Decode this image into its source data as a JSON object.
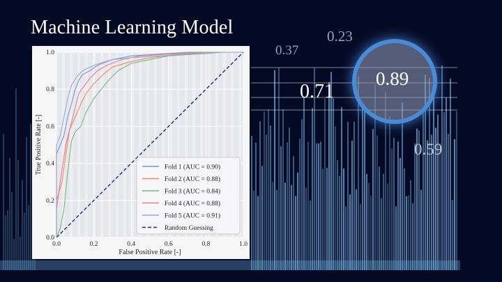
{
  "slide": {
    "title": "Machine Learning Model",
    "floating_numbers": [
      "0.23",
      "0.37",
      "0.71",
      "0.89",
      "0.59"
    ],
    "highlighted_number": "0.89",
    "highlight_color": "#4a8bd6",
    "background_color": "#050a24",
    "bar_color": "#6aa8d8"
  },
  "chart_data": {
    "type": "line",
    "xlabel": "False Positive Rate [-]",
    "ylabel": "True Positive Rate [-]",
    "xlim": [
      0,
      1
    ],
    "ylim": [
      0,
      1
    ],
    "xticks": [
      "0.0",
      "0.2",
      "0.4",
      "0.6",
      "0.8",
      "1.0"
    ],
    "yticks": [
      "0.0",
      "0.2",
      "0.4",
      "0.6",
      "0.8",
      "1.0"
    ],
    "grid": true,
    "legend_position": "lower-right",
    "series": [
      {
        "name": "Fold 1 (AUC = 0.90)",
        "color": "#6b9bd1",
        "x": [
          0,
          0,
          0.02,
          0.04,
          0.06,
          0.08,
          0.1,
          0.12,
          0.14,
          0.18,
          0.22,
          0.3,
          0.4,
          0.55,
          0.7,
          0.85,
          1
        ],
        "y": [
          0,
          0.45,
          0.5,
          0.55,
          0.65,
          0.72,
          0.8,
          0.85,
          0.88,
          0.9,
          0.93,
          0.96,
          0.98,
          0.99,
          1,
          1,
          1
        ]
      },
      {
        "name": "Fold 2 (AUC = 0.88)",
        "color": "#f08a5d",
        "x": [
          0,
          0,
          0.03,
          0.05,
          0.07,
          0.1,
          0.13,
          0.16,
          0.2,
          0.25,
          0.3,
          0.4,
          0.5,
          0.65,
          0.8,
          1
        ],
        "y": [
          0,
          0.2,
          0.3,
          0.45,
          0.58,
          0.65,
          0.72,
          0.78,
          0.83,
          0.88,
          0.92,
          0.95,
          0.97,
          0.99,
          1,
          1
        ]
      },
      {
        "name": "Fold 3 (AUC = 0.84)",
        "color": "#6fbf73",
        "x": [
          0,
          0.02,
          0.04,
          0.06,
          0.08,
          0.1,
          0.13,
          0.16,
          0.2,
          0.24,
          0.28,
          0.33,
          0.4,
          0.5,
          0.6,
          0.75,
          0.9,
          1
        ],
        "y": [
          0,
          0.05,
          0.15,
          0.35,
          0.52,
          0.57,
          0.6,
          0.68,
          0.75,
          0.8,
          0.85,
          0.9,
          0.94,
          0.96,
          0.98,
          0.99,
          1,
          1
        ]
      },
      {
        "name": "Fold 4 (AUC = 0.88)",
        "color": "#e57b96",
        "x": [
          0,
          0,
          0.02,
          0.05,
          0.08,
          0.1,
          0.12,
          0.15,
          0.18,
          0.22,
          0.27,
          0.35,
          0.45,
          0.6,
          0.8,
          1
        ],
        "y": [
          0,
          0.15,
          0.3,
          0.5,
          0.62,
          0.7,
          0.78,
          0.82,
          0.86,
          0.9,
          0.93,
          0.96,
          0.98,
          0.99,
          1,
          1
        ]
      },
      {
        "name": "Fold 5 (AUC = 0.91)",
        "color": "#9aa7d6",
        "x": [
          0,
          0,
          0.02,
          0.04,
          0.06,
          0.08,
          0.11,
          0.14,
          0.18,
          0.23,
          0.3,
          0.4,
          0.55,
          0.7,
          0.85,
          1
        ],
        "y": [
          0,
          0.5,
          0.55,
          0.65,
          0.75,
          0.82,
          0.87,
          0.9,
          0.92,
          0.94,
          0.96,
          0.97,
          0.98,
          0.99,
          1,
          1
        ]
      }
    ],
    "reference": {
      "name": "Random Guessing",
      "color": "#1f2a7a",
      "style": "dashed",
      "x": [
        0,
        1
      ],
      "y": [
        0,
        1
      ]
    }
  }
}
